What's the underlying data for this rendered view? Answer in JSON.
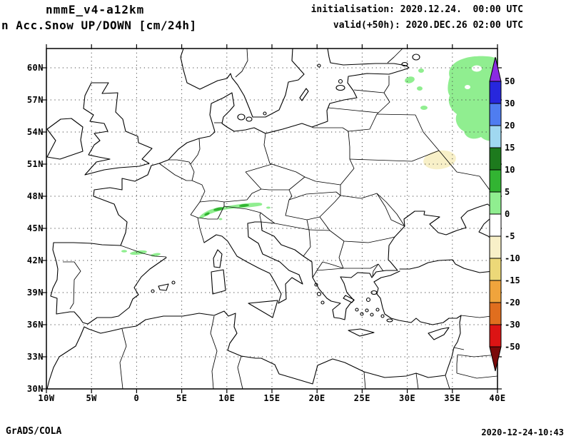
{
  "header": {
    "model_title": "nmmE_v4-a12km",
    "product_title": "n Acc.Snow UP/DOWN [cm/24h]",
    "initialisation": "initialisation: 2020.12.24.  00:00 UTC",
    "valid": "valid(+50h): 2020.DEC.26 02:00 UTC"
  },
  "footer": {
    "brand": "GrADS/COLA",
    "timestamp": "2020-12-24-10:43"
  },
  "axes": {
    "lat_ticks": [
      {
        "value": 30,
        "label": "30N"
      },
      {
        "value": 33,
        "label": "33N"
      },
      {
        "value": 36,
        "label": "36N"
      },
      {
        "value": 39,
        "label": "39N"
      },
      {
        "value": 42,
        "label": "42N"
      },
      {
        "value": 45,
        "label": "45N"
      },
      {
        "value": 48,
        "label": "48N"
      },
      {
        "value": 51,
        "label": "51N"
      },
      {
        "value": 54,
        "label": "54N"
      },
      {
        "value": 57,
        "label": "57N"
      },
      {
        "value": 60,
        "label": "60N"
      }
    ],
    "lon_ticks": [
      {
        "value": -10,
        "label": "10W"
      },
      {
        "value": -5,
        "label": "5W"
      },
      {
        "value": 0,
        "label": "0"
      },
      {
        "value": 5,
        "label": "5E"
      },
      {
        "value": 10,
        "label": "10E"
      },
      {
        "value": 15,
        "label": "15E"
      },
      {
        "value": 20,
        "label": "20E"
      },
      {
        "value": 25,
        "label": "25E"
      },
      {
        "value": 30,
        "label": "30E"
      },
      {
        "value": 35,
        "label": "35E"
      },
      {
        "value": 40,
        "label": "40E"
      }
    ]
  },
  "colorbar": {
    "levels": [
      "50",
      "30",
      "20",
      "15",
      "10",
      "5",
      "0",
      "-5",
      "-10",
      "-15",
      "-20",
      "-30",
      "-50"
    ],
    "colors": [
      "#8a2be2",
      "#2727dd",
      "#4f7df0",
      "#a0d8f0",
      "#1d7a1d",
      "#32b432",
      "#90ee90",
      "#ffffff",
      "#f8f0c8",
      "#ecd878",
      "#f0a43c",
      "#e06e1e",
      "#dc1414",
      "#7a0a0a"
    ]
  },
  "map_shading": {
    "light_color_index": 6,
    "mid_color_index": 5,
    "negative_color_index": 8
  },
  "chart_data": {
    "type": "heatmap",
    "title": "nmmE_v4-a12km Acc.Snow UP/DOWN",
    "units": "cm/24h",
    "levels": [
      -50,
      -30,
      -20,
      -15,
      -10,
      -5,
      0,
      5,
      10,
      15,
      20,
      30,
      50
    ],
    "lon_range": [
      "10W",
      "40E"
    ],
    "lat_range": [
      "30N",
      "60N"
    ],
    "regions": [
      {
        "name": "Alps band",
        "approx": "7E-14E, 46N-47.5N",
        "shade": "green (positive snow accumulation)"
      },
      {
        "name": "Pyrenees / NE Spain",
        "approx": "0E-3E, ~42.5N",
        "shade": "light green"
      },
      {
        "name": "NW Russia / NE Baltic",
        "approx": "28E-40E, 56N-62N",
        "shade": "light green"
      },
      {
        "name": "W Russia patch",
        "approx": "31E-35E, 50N-52N",
        "shade": "pale cream (negative)"
      }
    ]
  }
}
